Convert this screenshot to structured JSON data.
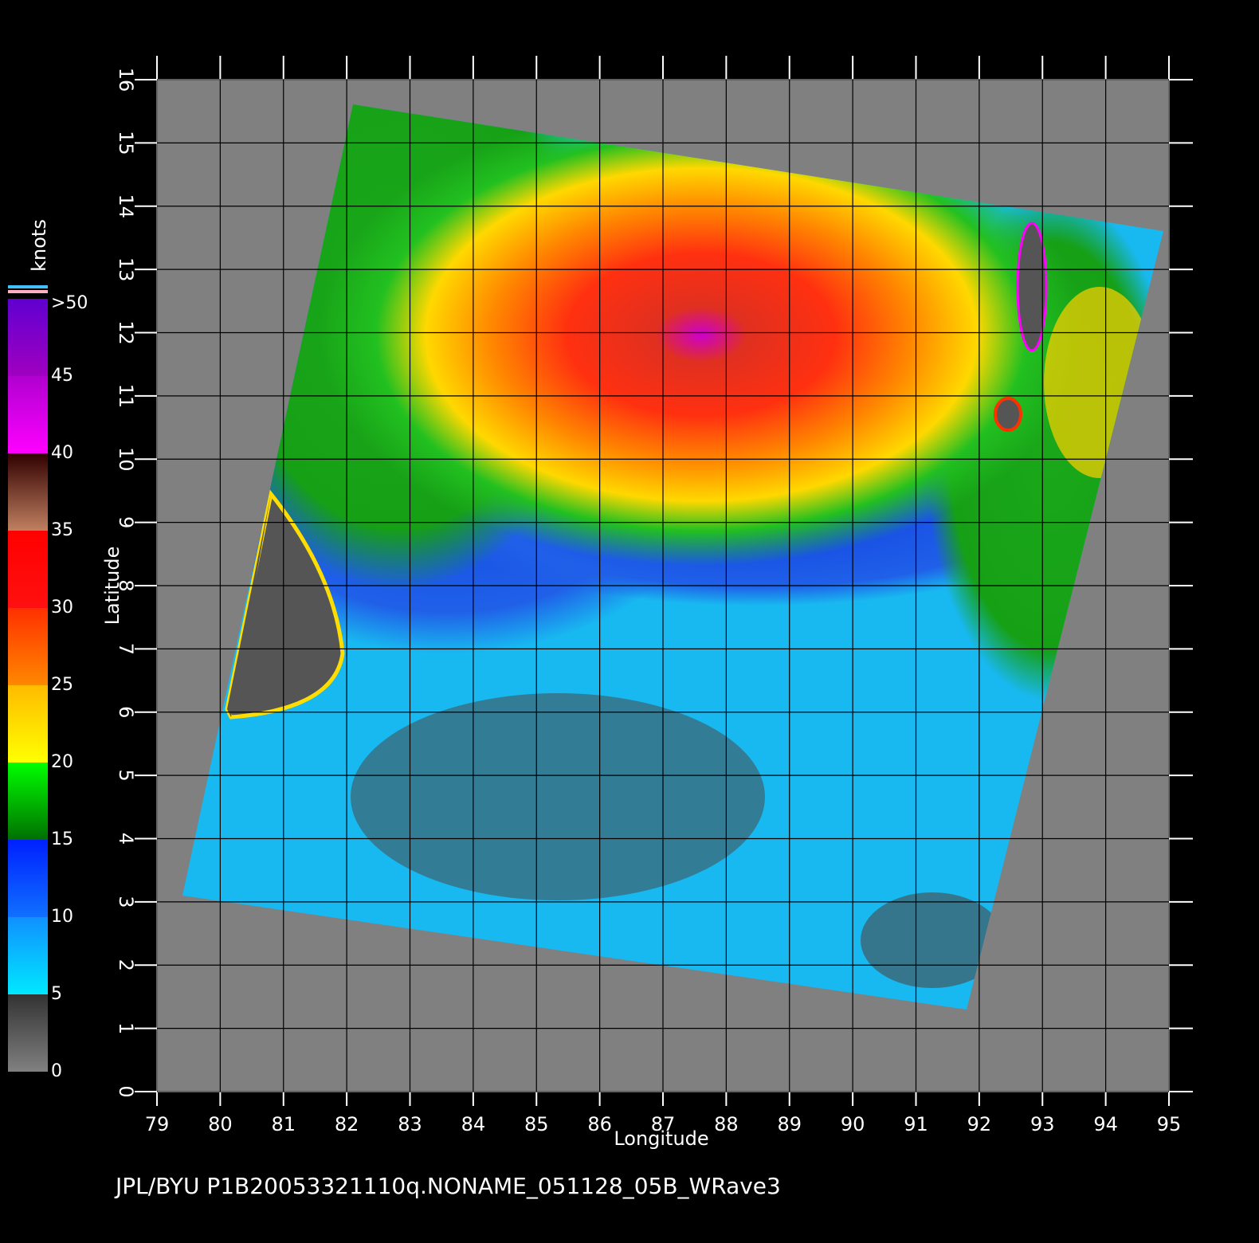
{
  "map": {
    "caption": "JPL/BYU  P1B20053321110q.NONAME_051128_05B_WRave3",
    "x_label": "Longitude",
    "y_label": "Latitude",
    "xlim": [
      79,
      95
    ],
    "ylim": [
      0,
      16
    ],
    "xticks": [
      79,
      80,
      81,
      82,
      83,
      84,
      85,
      86,
      87,
      88,
      89,
      90,
      91,
      92,
      93,
      94,
      95
    ],
    "yticks": [
      0,
      1,
      2,
      3,
      4,
      5,
      6,
      7,
      8,
      9,
      10,
      11,
      12,
      13,
      14,
      15,
      16
    ]
  },
  "colorbar": {
    "label": "knots",
    "lim": [
      0,
      50
    ],
    "ticks": [
      0,
      5,
      10,
      15,
      20,
      25,
      30,
      35,
      40,
      45,
      {
        "value": 50,
        "label": ">50"
      }
    ]
  }
}
